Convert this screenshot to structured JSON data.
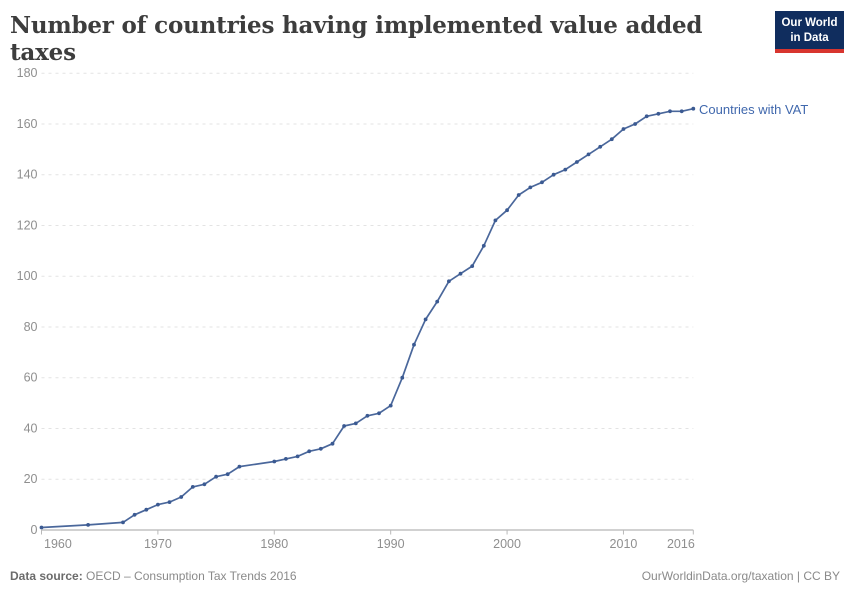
{
  "header": {
    "title": "Number of countries having implemented value added taxes",
    "logo": {
      "line1": "Our World",
      "line2": "in Data"
    }
  },
  "legend": {
    "label": "Countries with VAT"
  },
  "footer": {
    "source_label": "Data source:",
    "source_value": "OECD – Consumption Tax Trends 2016",
    "credit": "OurWorldinData.org/taxation | CC BY"
  },
  "chart_data": {
    "type": "line",
    "title": "Number of countries having implemented value added taxes",
    "xlabel": "",
    "ylabel": "",
    "xlim": [
      1960,
      2016
    ],
    "ylim": [
      0,
      180
    ],
    "x_ticks": [
      1960,
      1970,
      1980,
      1990,
      2000,
      2010,
      2016
    ],
    "y_ticks": [
      0,
      20,
      40,
      60,
      80,
      100,
      120,
      140,
      160,
      180
    ],
    "grid": "horizontal-dashed",
    "legend_position": "right-of-last-point",
    "series": [
      {
        "name": "Countries with VAT",
        "points": [
          [
            1960,
            1
          ],
          [
            1964,
            2
          ],
          [
            1967,
            3
          ],
          [
            1968,
            6
          ],
          [
            1969,
            8
          ],
          [
            1970,
            10
          ],
          [
            1971,
            11
          ],
          [
            1972,
            13
          ],
          [
            1973,
            17
          ],
          [
            1974,
            18
          ],
          [
            1975,
            21
          ],
          [
            1976,
            22
          ],
          [
            1977,
            25
          ],
          [
            1980,
            27
          ],
          [
            1981,
            28
          ],
          [
            1982,
            29
          ],
          [
            1983,
            31
          ],
          [
            1984,
            32
          ],
          [
            1985,
            34
          ],
          [
            1986,
            41
          ],
          [
            1987,
            42
          ],
          [
            1988,
            45
          ],
          [
            1989,
            46
          ],
          [
            1990,
            49
          ],
          [
            1991,
            60
          ],
          [
            1992,
            73
          ],
          [
            1993,
            83
          ],
          [
            1994,
            90
          ],
          [
            1995,
            98
          ],
          [
            1996,
            101
          ],
          [
            1997,
            104
          ],
          [
            1998,
            112
          ],
          [
            1999,
            122
          ],
          [
            2000,
            126
          ],
          [
            2001,
            132
          ],
          [
            2002,
            135
          ],
          [
            2003,
            137
          ],
          [
            2004,
            140
          ],
          [
            2005,
            142
          ],
          [
            2006,
            145
          ],
          [
            2007,
            148
          ],
          [
            2008,
            151
          ],
          [
            2009,
            154
          ],
          [
            2010,
            158
          ],
          [
            2011,
            160
          ],
          [
            2012,
            163
          ],
          [
            2013,
            164
          ],
          [
            2014,
            165
          ],
          [
            2015,
            165
          ],
          [
            2016,
            166
          ]
        ]
      }
    ],
    "colors": {
      "line": "#4a679b",
      "point": "#3b5a92",
      "legend_text": "#4068ad",
      "grid": "#e3e3e3",
      "axis": "#a3a3a3",
      "tick_label": "#8f8f8f",
      "logo_bg": "#102d5e",
      "logo_bar": "#d8352f"
    }
  }
}
